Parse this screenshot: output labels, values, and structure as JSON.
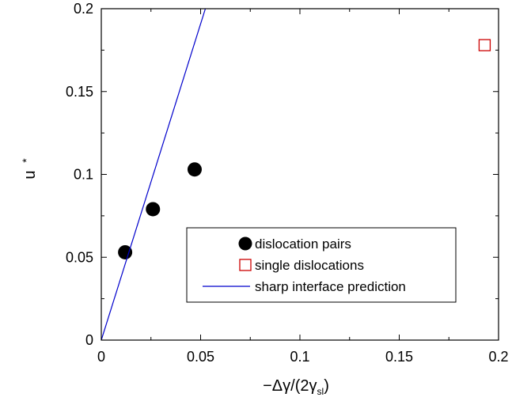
{
  "chart_data": {
    "type": "scatter",
    "xlabel": "−Δγ/(2γ",
    "xlabel_sub": "sl",
    "xlabel_end": ")",
    "ylabel": "u",
    "ylabel_sup": "*",
    "xlim": [
      0,
      0.2
    ],
    "ylim": [
      0,
      0.2
    ],
    "x_ticks": [
      0,
      0.05,
      0.1,
      0.15,
      0.2
    ],
    "x_tick_labels": [
      "0",
      "0.05",
      "0.1",
      "0.15",
      "0.2"
    ],
    "y_ticks": [
      0,
      0.05,
      0.1,
      0.15,
      0.2
    ],
    "y_tick_labels": [
      "0",
      "0.05",
      "0.1",
      "0.15",
      "0.2"
    ],
    "grid": false,
    "legend_position": "bottom-right",
    "series": [
      {
        "name": "dislocation pairs",
        "marker": "filled-circle",
        "color": "#000000",
        "points": [
          {
            "x": 0.012,
            "y": 0.053
          },
          {
            "x": 0.026,
            "y": 0.079
          },
          {
            "x": 0.047,
            "y": 0.103
          }
        ]
      },
      {
        "name": "single dislocations",
        "marker": "open-square",
        "color": "#cc0000",
        "points": [
          {
            "x": 0.193,
            "y": 0.178
          }
        ]
      },
      {
        "name": "sharp interface prediction",
        "marker": "line",
        "color": "#0000cc",
        "points": [
          {
            "x": 0,
            "y": 0
          },
          {
            "x": 0.0524,
            "y": 0.2
          }
        ]
      }
    ]
  }
}
